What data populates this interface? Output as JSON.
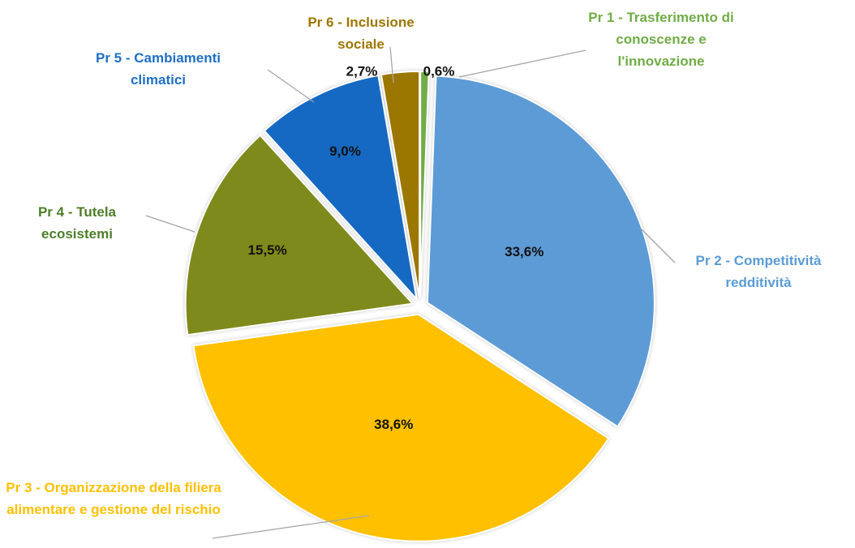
{
  "chart_data": {
    "type": "pie",
    "categories": [
      "Pr 1 - Trasferimento di conoscenze e l'innovazione",
      "Pr 2 - Competitività redditività",
      "Pr 3 - Organizzazione della filiera alimentare e gestione del rischio",
      "Pr 4  - Tutela ecosistemi",
      "Pr 5 - Cambiamenti climatici",
      "Pr 6 - Inclusione sociale"
    ],
    "values": [
      0.6,
      33.6,
      38.6,
      15.5,
      9.0,
      2.7
    ],
    "value_labels": [
      "0,6%",
      "33,6%",
      "38,6%",
      "15,5%",
      "9,0%",
      "2,7%"
    ],
    "colors": [
      "#70ad47",
      "#5b9bd5",
      "#ffc000",
      "#7f8a1e",
      "#1469c2",
      "#9c7700"
    ],
    "label_colors": [
      "#70ad47",
      "#5b9bd5",
      "#ffc000",
      "#4e7d2a",
      "#1f6fc4",
      "#9c7700"
    ]
  }
}
